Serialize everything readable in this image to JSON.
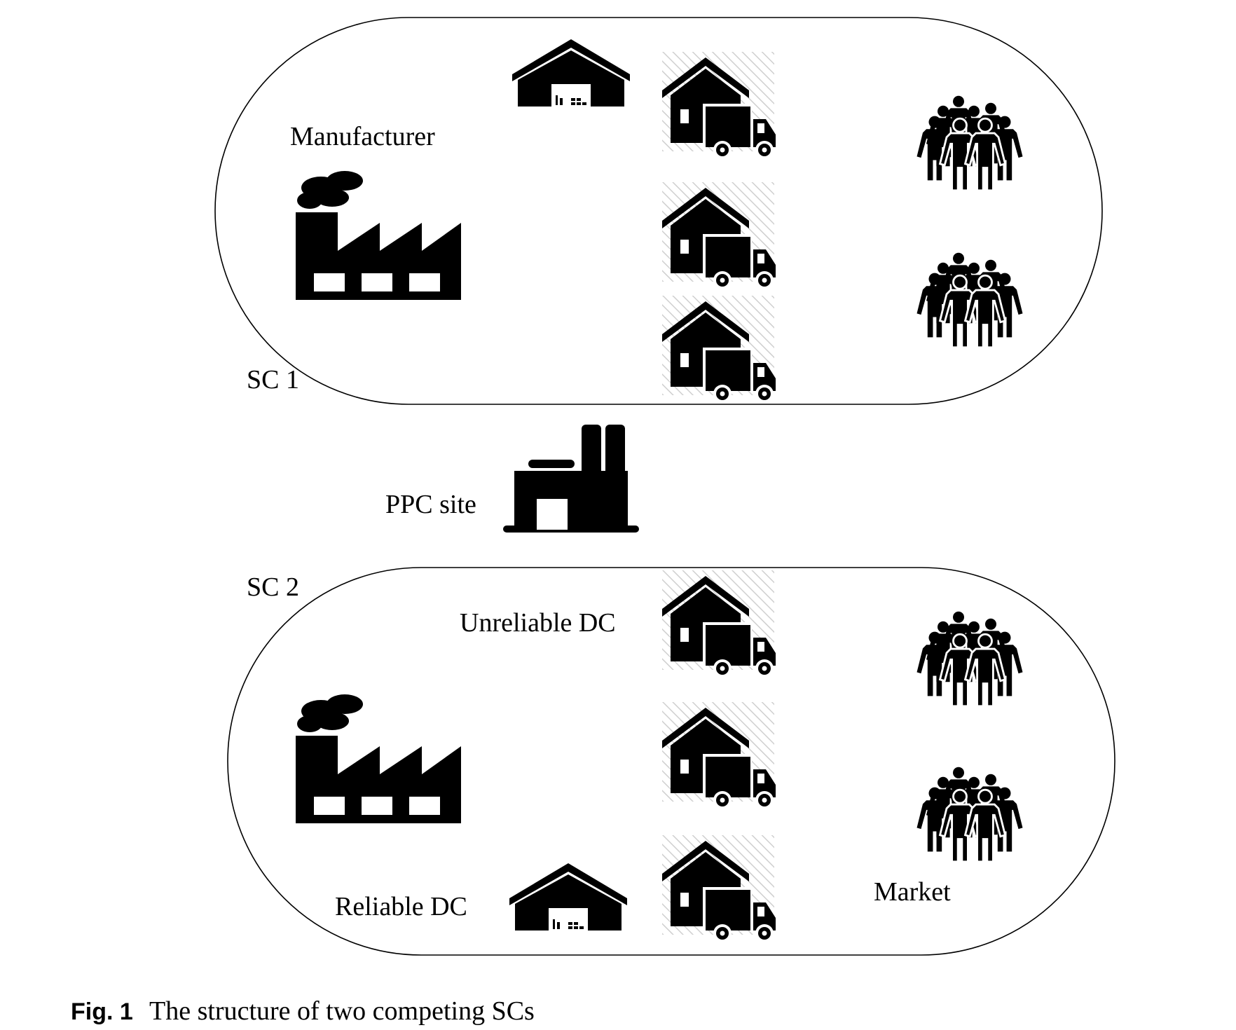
{
  "diagram": {
    "sc1_label": "SC 1",
    "sc2_label": "SC 2",
    "manufacturer_label": "Manufacturer",
    "ppc_label": "PPC site",
    "unreliable_dc_label": "Unreliable DC",
    "reliable_dc_label": "Reliable DC",
    "market_label": "Market"
  },
  "caption": {
    "number": "Fig. 1",
    "text": "The structure of two competing SCs"
  },
  "icons": {
    "factory": "factory-icon",
    "warehouse": "warehouse-icon",
    "dc": "house-truck-icon",
    "market": "people-group-icon",
    "ppc": "plant-icon"
  },
  "colors": {
    "ink": "#000000",
    "background": "#ffffff"
  }
}
